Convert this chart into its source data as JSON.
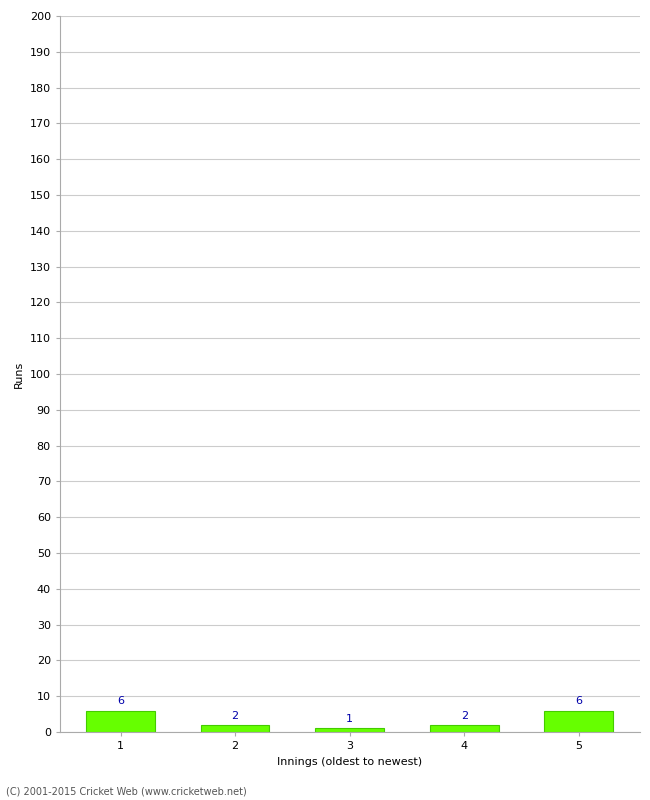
{
  "xlabel": "Innings (oldest to newest)",
  "ylabel": "Runs",
  "categories": [
    1,
    2,
    3,
    4,
    5
  ],
  "values": [
    6,
    2,
    1,
    2,
    6
  ],
  "bar_color": "#66ff00",
  "bar_edgecolor": "#44cc00",
  "label_color": "#0000aa",
  "label_values": [
    6,
    2,
    1,
    2,
    6
  ],
  "ylim": [
    0,
    200
  ],
  "yticks": [
    0,
    10,
    20,
    30,
    40,
    50,
    60,
    70,
    80,
    90,
    100,
    110,
    120,
    130,
    140,
    150,
    160,
    170,
    180,
    190,
    200
  ],
  "grid_color": "#cccccc",
  "background_color": "#ffffff",
  "footer": "(C) 2001-2015 Cricket Web (www.cricketweb.net)",
  "footer_color": "#555555",
  "label_fontsize": 8,
  "axis_fontsize": 8,
  "ylabel_fontsize": 8,
  "tick_label_color": "#000000",
  "spine_color": "#aaaaaa"
}
